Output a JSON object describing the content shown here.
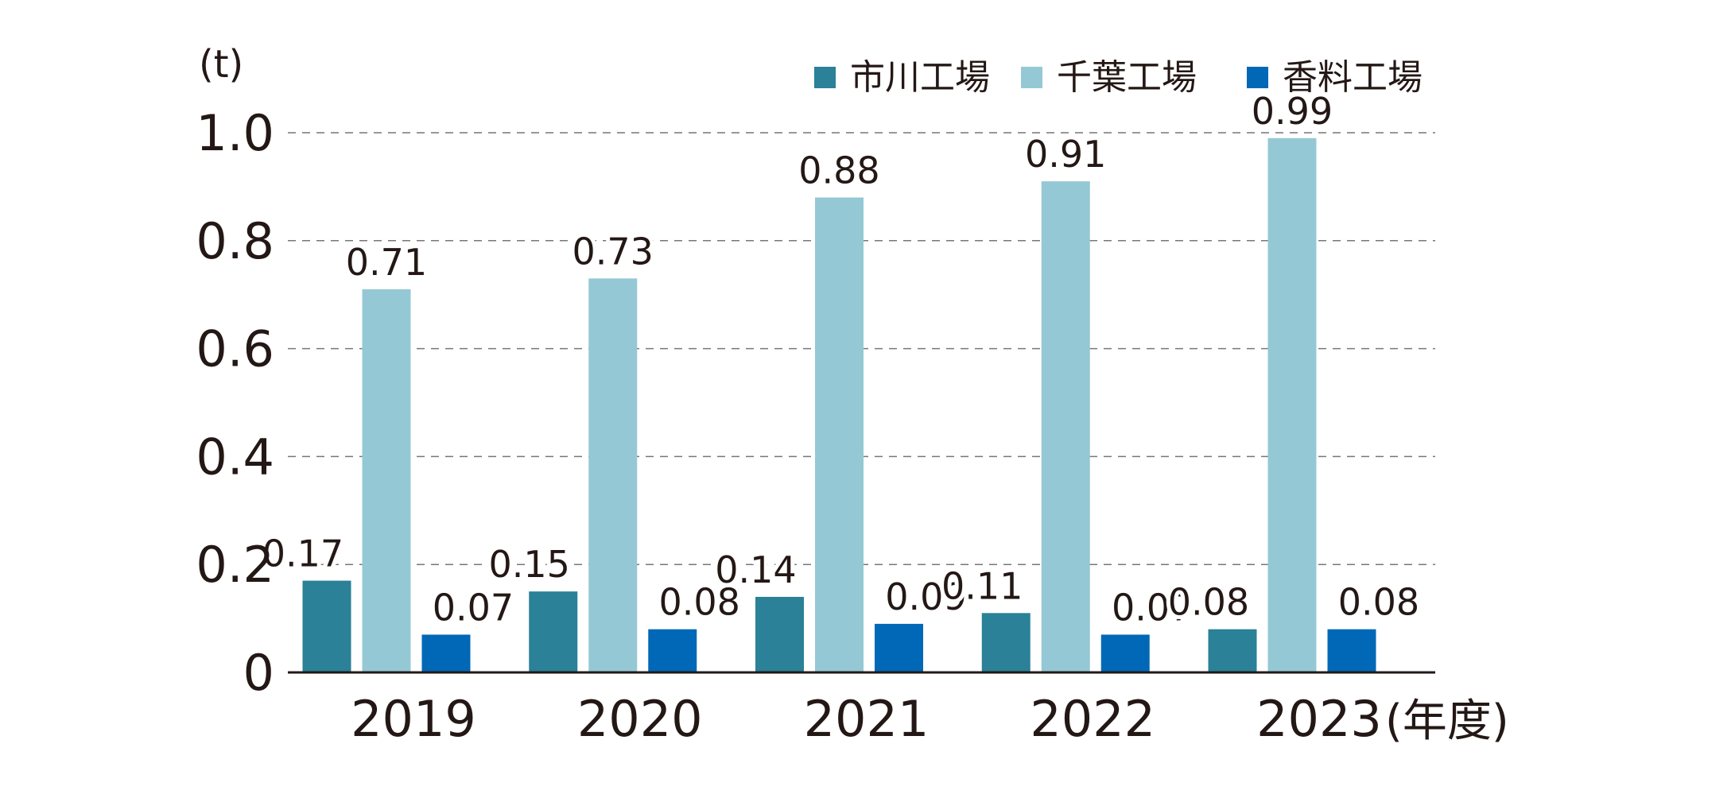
{
  "chart_data": {
    "type": "bar",
    "y_unit": "(t)",
    "x_unit": "(年度)",
    "categories": [
      "2019",
      "2020",
      "2021",
      "2022",
      "2023"
    ],
    "series": [
      {
        "name": "市川工場",
        "color": "#2a8198",
        "values": [
          0.17,
          0.15,
          0.14,
          0.11,
          0.08
        ]
      },
      {
        "name": "千葉工場",
        "color": "#95c8d5",
        "values": [
          0.71,
          0.73,
          0.88,
          0.91,
          0.99
        ]
      },
      {
        "name": "香料工場",
        "color": "#0068b7",
        "values": [
          0.07,
          0.08,
          0.09,
          0.07,
          0.08
        ]
      }
    ],
    "y_ticks": [
      "0",
      "0.2",
      "0.4",
      "0.6",
      "0.8",
      "1.0"
    ],
    "ylim": [
      0,
      1.0
    ],
    "grid": true,
    "legend_position": "top-right"
  }
}
